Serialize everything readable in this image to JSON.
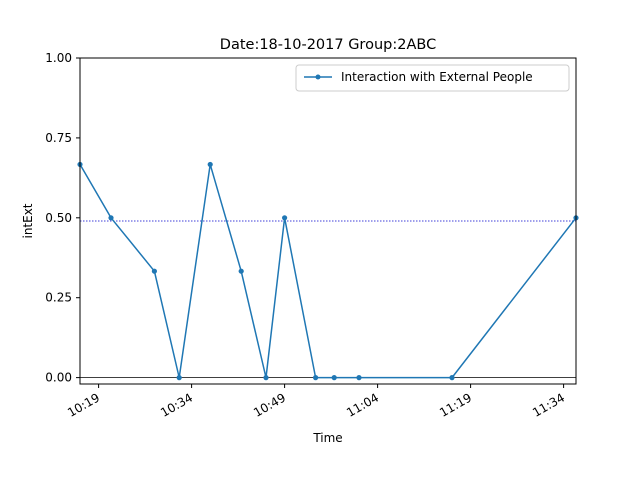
{
  "chart_data": {
    "type": "line",
    "title": "Date:18-10-2017  Group:2ABC",
    "xlabel": "Time",
    "ylabel": "intExt",
    "x_ticks": [
      "10:19",
      "10:34",
      "10:49",
      "11:04",
      "11:19",
      "11:34"
    ],
    "y_ticks": [
      "0.00",
      "0.25",
      "0.50",
      "0.75",
      "1.00"
    ],
    "ylim": [
      -0.02,
      1.0
    ],
    "xlim": [
      "10:16",
      "11:36"
    ],
    "grid": false,
    "legend_position": "top-right",
    "series": [
      {
        "name": "Interaction with External People",
        "color": "#1f77b4",
        "x": [
          "10:16",
          "10:21",
          "10:28",
          "10:32",
          "10:37",
          "10:42",
          "10:46",
          "10:49",
          "10:54",
          "10:57",
          "11:01",
          "11:16",
          "11:36"
        ],
        "values": [
          0.667,
          0.5,
          0.333,
          0.0,
          0.667,
          0.333,
          0.0,
          0.5,
          0.0,
          0.0,
          0.0,
          0.0,
          0.5
        ]
      }
    ],
    "reference_lines": [
      {
        "axis": "y",
        "value": 0.49,
        "color": "#0000cc",
        "style": "dotted"
      },
      {
        "axis": "y",
        "value": 0.0,
        "color": "#000000",
        "style": "solid"
      }
    ]
  }
}
